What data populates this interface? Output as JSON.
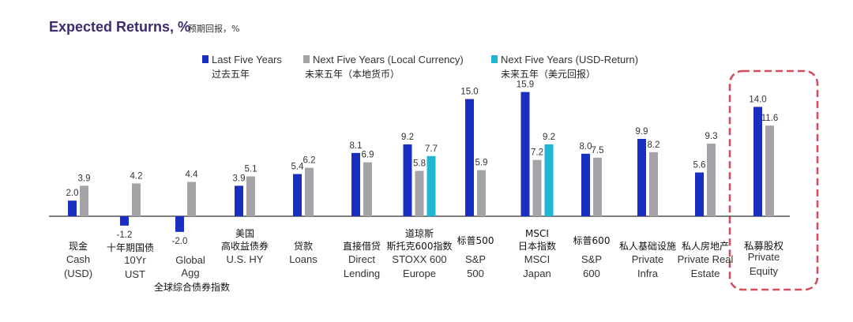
{
  "header": {
    "title": "Expected Returns, %",
    "subtitle": "预期回报，%"
  },
  "chart_data": {
    "type": "bar",
    "title": "Expected Returns, %",
    "subtitle": "预期回报，%",
    "series": [
      {
        "name": "Last Five Years",
        "name_zh": "过去五年",
        "color": "#1a2fbf",
        "values": [
          2.0,
          -1.2,
          -2.0,
          3.9,
          5.4,
          8.1,
          9.2,
          15.0,
          15.9,
          8.0,
          9.9,
          5.6,
          14.0
        ]
      },
      {
        "name": "Next Five Years (Local Currency)",
        "name_zh": "未来五年（本地货币）",
        "color": "#a3a3a8",
        "values": [
          3.9,
          4.2,
          4.4,
          5.1,
          6.2,
          6.9,
          5.8,
          5.9,
          7.2,
          7.5,
          8.2,
          9.3,
          11.6
        ]
      },
      {
        "name": "Next Five Years (USD-Return)",
        "name_zh": "未来五年（美元回报）",
        "color": "#1fb6d4",
        "values": [
          null,
          null,
          null,
          null,
          null,
          null,
          7.7,
          null,
          9.2,
          null,
          null,
          null,
          null
        ]
      }
    ],
    "value_labels": [
      [
        "2.0",
        "3.9",
        ""
      ],
      [
        "-1.2",
        "4.2",
        ""
      ],
      [
        "-2.0",
        "4.4",
        ""
      ],
      [
        "3.9",
        "5.1",
        ""
      ],
      [
        "5.4",
        "6.2",
        ""
      ],
      [
        "8.1",
        "6.9",
        ""
      ],
      [
        "9.2",
        "5.8",
        "7.7"
      ],
      [
        "15.0",
        "5.9",
        ""
      ],
      [
        "15.9",
        "7.2",
        "9.2"
      ],
      [
        "8.0",
        "7.5",
        ""
      ],
      [
        "9.9",
        "8.2",
        ""
      ],
      [
        "5.6",
        "9.3",
        ""
      ],
      [
        "14.0",
        "11.6",
        ""
      ]
    ],
    "categories": [
      {
        "zh": "现金",
        "en": [
          "Cash",
          "(USD)"
        ]
      },
      {
        "zh": "十年期国债",
        "en": [
          "10Yr",
          "UST"
        ]
      },
      {
        "zh": "全球综合债券指数",
        "en": [
          "Global",
          "Agg"
        ]
      },
      {
        "zh": "美国",
        "zh2": "高收益债券",
        "en": [
          "U.S. HY"
        ]
      },
      {
        "zh": "贷款",
        "en": [
          "Loans"
        ]
      },
      {
        "zh": "直接借贷",
        "en": [
          "Direct",
          "Lending"
        ]
      },
      {
        "zh": "道琼斯",
        "zh2": "斯托克600指数",
        "en": [
          "STOXX 600",
          "Europe"
        ]
      },
      {
        "zh": "标普500",
        "en": [
          "S&P",
          "500"
        ]
      },
      {
        "zh": "MSCI",
        "zh2": "日本指数",
        "en": [
          "MSCI",
          "Japan"
        ]
      },
      {
        "zh": "标普600",
        "en": [
          "S&P",
          "600"
        ]
      },
      {
        "zh": "私人基础设施",
        "en": [
          "Private",
          "Infra"
        ]
      },
      {
        "zh": "私人房地产",
        "en": [
          "Private Real",
          "Estate"
        ]
      },
      {
        "zh": "私募股权",
        "en": [
          "Private",
          "Equity"
        ]
      }
    ],
    "highlight": {
      "category_index": 12,
      "style": "dashed-red-box",
      "color": "#d0505e"
    },
    "axis_color": "#333333",
    "ylim": [
      -2.5,
      16.5
    ]
  }
}
